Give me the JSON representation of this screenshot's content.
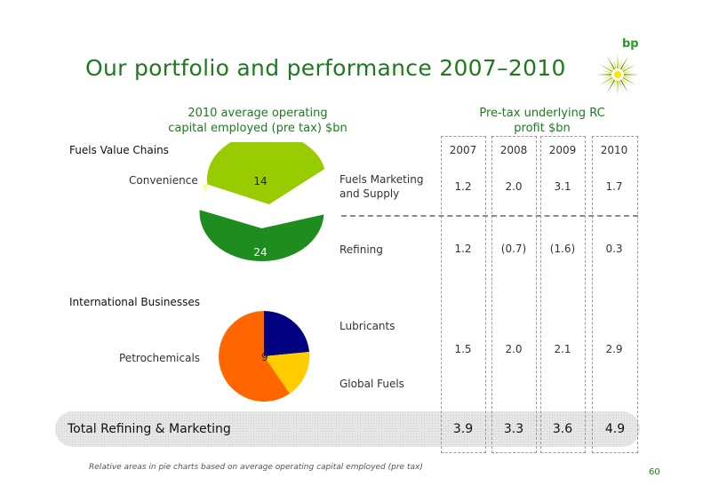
{
  "title": "Our portfolio and performance 2007–2010",
  "logo": {
    "text": "bp"
  },
  "left_heading": {
    "line1": "2010 average operating",
    "line2": "capital employed (pre tax) $bn"
  },
  "right_heading": {
    "line1": "Pre-tax underlying RC",
    "line2": "profit $bn"
  },
  "sections": {
    "fuels_value_chains": "Fuels Value Chains",
    "international_businesses": "International Businesses"
  },
  "pie_labels": {
    "convenience": "Convenience",
    "convenience_value": "14",
    "refining_value": "24",
    "petrochemicals": "Petrochemicals",
    "petrochemicals_value": "9"
  },
  "years": [
    "2007",
    "2008",
    "2009",
    "2010"
  ],
  "rows": [
    {
      "label_line1": "Fuels Marketing",
      "label_line2": "and Supply",
      "values": [
        "1.2",
        "2.0",
        "3.1",
        "1.7"
      ]
    },
    {
      "label_line1": "Refining",
      "label_line2": "",
      "values": [
        "1.2",
        "(0.7)",
        "(1.6)",
        "0.3"
      ]
    },
    {
      "label_line1": "Lubricants",
      "label_line2": "Global Fuels",
      "values": [
        "1.5",
        "2.0",
        "2.1",
        "2.9"
      ]
    }
  ],
  "total": {
    "label": "Total Refining & Marketing",
    "values": [
      "3.9",
      "3.3",
      "3.6",
      "4.9"
    ]
  },
  "footnote": "Relative areas in pie charts based on average operating capital employed (pre tax)",
  "page_number": "60",
  "colors": {
    "title_green": "#1f7a1f",
    "convenience": "#99cc00",
    "refining": "#1e8c1e",
    "petro_orange": "#ff6600",
    "petro_navy": "#000080",
    "petro_yellow": "#ffcc00"
  }
}
